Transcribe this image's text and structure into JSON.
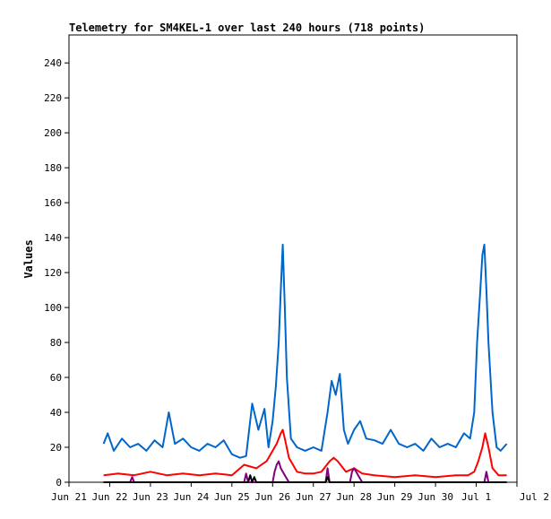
{
  "chart_data": {
    "type": "line",
    "title": "Telemetry for SM4KEL-1 over last 240 hours (718 points)",
    "xlabel": "",
    "ylabel": "Values",
    "x_tick_labels": [
      "Jun 21",
      "Jun 22",
      "Jun 23",
      "Jun 24",
      "Jun 25",
      "Jun 26",
      "Jun 27",
      "Jun 28",
      "Jun 29",
      "Jun 30",
      "Jul 1",
      "Jul 2"
    ],
    "x_tick_days": [
      0,
      1,
      2,
      3,
      4,
      5,
      6,
      7,
      8,
      9,
      10,
      11
    ],
    "y_ticks": [
      0,
      20,
      40,
      60,
      80,
      100,
      120,
      140,
      160,
      180,
      200,
      220,
      240
    ],
    "xlim_days": [
      0,
      11
    ],
    "ylim": [
      0,
      256
    ],
    "grid": false,
    "legend": "none",
    "series": [
      {
        "color": "#0066cc",
        "x": [
          0.85,
          0.95,
          1.1,
          1.3,
          1.5,
          1.7,
          1.9,
          2.1,
          2.3,
          2.45,
          2.6,
          2.8,
          3.0,
          3.2,
          3.4,
          3.6,
          3.8,
          4.0,
          4.2,
          4.35,
          4.5,
          4.65,
          4.8,
          4.9,
          5.0,
          5.08,
          5.15,
          5.2,
          5.25,
          5.3,
          5.35,
          5.45,
          5.6,
          5.8,
          6.0,
          6.2,
          6.35,
          6.45,
          6.55,
          6.65,
          6.75,
          6.85,
          7.0,
          7.15,
          7.3,
          7.5,
          7.7,
          7.9,
          8.1,
          8.3,
          8.5,
          8.7,
          8.9,
          9.1,
          9.3,
          9.5,
          9.7,
          9.85,
          9.95,
          10.02,
          10.1,
          10.15,
          10.2,
          10.25,
          10.3,
          10.4,
          10.5,
          10.6,
          10.75
        ],
        "y": [
          22,
          28,
          18,
          25,
          20,
          22,
          18,
          24,
          20,
          40,
          22,
          25,
          20,
          18,
          22,
          20,
          24,
          16,
          14,
          15,
          45,
          30,
          42,
          20,
          35,
          55,
          80,
          110,
          136,
          100,
          60,
          25,
          20,
          18,
          20,
          18,
          40,
          58,
          50,
          62,
          30,
          22,
          30,
          35,
          25,
          24,
          22,
          30,
          22,
          20,
          22,
          18,
          25,
          20,
          22,
          20,
          28,
          25,
          40,
          80,
          110,
          130,
          136,
          110,
          80,
          40,
          20,
          18,
          22
        ]
      },
      {
        "color": "#ff0000",
        "x": [
          0.85,
          1.2,
          1.6,
          2.0,
          2.4,
          2.8,
          3.2,
          3.6,
          4.0,
          4.3,
          4.6,
          4.85,
          5.0,
          5.1,
          5.2,
          5.25,
          5.3,
          5.4,
          5.6,
          5.8,
          6.0,
          6.2,
          6.4,
          6.5,
          6.6,
          6.8,
          7.0,
          7.2,
          7.5,
          8.0,
          8.5,
          9.0,
          9.5,
          9.8,
          9.95,
          10.05,
          10.15,
          10.22,
          10.3,
          10.4,
          10.55,
          10.75
        ],
        "y": [
          4,
          5,
          4,
          6,
          4,
          5,
          4,
          5,
          4,
          10,
          8,
          12,
          18,
          22,
          28,
          30,
          25,
          14,
          6,
          5,
          5,
          6,
          12,
          14,
          12,
          6,
          8,
          5,
          4,
          3,
          4,
          3,
          4,
          4,
          6,
          12,
          20,
          28,
          20,
          8,
          4,
          4
        ]
      },
      {
        "color": "#800080",
        "x": [
          0.85,
          1.5,
          1.55,
          1.6,
          2.4,
          4.3,
          4.35,
          4.4,
          5.0,
          5.05,
          5.1,
          5.15,
          5.2,
          5.3,
          5.4,
          6.3,
          6.35,
          6.4,
          6.9,
          6.95,
          7.0,
          7.05,
          7.1,
          7.2,
          8.0,
          9.0,
          10.2,
          10.25,
          10.3,
          10.75
        ],
        "y": [
          0,
          0,
          3,
          0,
          0,
          0,
          5,
          0,
          0,
          6,
          10,
          12,
          8,
          4,
          0,
          0,
          8,
          0,
          0,
          6,
          8,
          6,
          4,
          0,
          0,
          0,
          0,
          6,
          0,
          0
        ]
      },
      {
        "color": "#000000",
        "x": [
          0.85,
          4.4,
          4.45,
          4.5,
          4.55,
          4.6,
          5.0,
          6.3,
          6.35,
          6.4,
          10.75
        ],
        "y": [
          0,
          0,
          4,
          0,
          3,
          0,
          0,
          0,
          3,
          0,
          0
        ]
      }
    ]
  }
}
